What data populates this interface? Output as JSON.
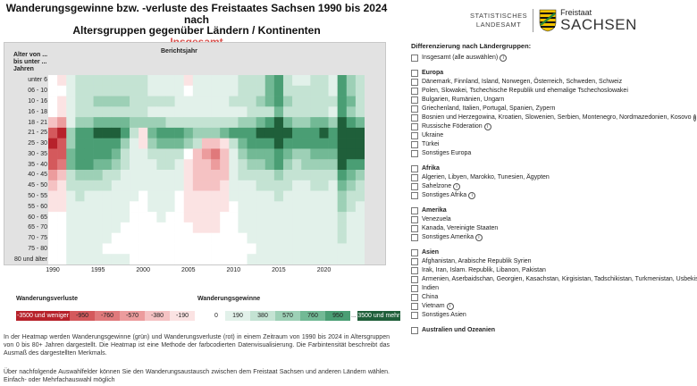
{
  "title": {
    "line1": "Wanderungsgewinne bzw. -verluste des Freistaates Sachsen 1990 bis 2024 nach",
    "line2": "Altersgruppen gegenüber Ländern / Kontinenten",
    "subtitle": "Insgesamt"
  },
  "logo": {
    "statistisches": "STATISTISCHES",
    "landesamt": "LANDESAMT",
    "freistaat": "Freistaat",
    "sachsen": "SACHSEN"
  },
  "chart_data": {
    "type": "heatmap",
    "y_axis_title": "Alter von ... bis unter ... Jahren",
    "x_axis_title": "Berichtsjahr",
    "age_groups": [
      "unter 6",
      "06 - 10",
      "10 - 16",
      "16 - 18",
      "18 - 21",
      "21 - 25",
      "25 - 30",
      "30 - 35",
      "35 - 40",
      "40 - 45",
      "45 - 50",
      "50 - 55",
      "55 - 60",
      "60 - 65",
      "65 - 70",
      "70 - 75",
      "75 - 80",
      "80 und älter"
    ],
    "years": [
      1990,
      1991,
      1992,
      1993,
      1994,
      1995,
      1996,
      1997,
      1998,
      1999,
      2000,
      2001,
      2002,
      2003,
      2004,
      2005,
      2006,
      2007,
      2008,
      2009,
      2010,
      2011,
      2012,
      2013,
      2014,
      2015,
      2016,
      2017,
      2018,
      2019,
      2020,
      2021,
      2022,
      2023,
      2024
    ],
    "x_tick_labels": [
      "1990",
      "1995",
      "2000",
      "2005",
      "2010",
      "2015",
      "2020"
    ],
    "legend_loss_title": "Wanderungsverluste",
    "legend_gain_title": "Wanderungsgewinne",
    "legend_bins": [
      "-3500 und weniger",
      "-950",
      "-760",
      "-570",
      "-380",
      "-190",
      "0",
      "190",
      "380",
      "570",
      "760",
      "950",
      "3500 und mehr"
    ],
    "legend_ellipsis": "...",
    "legend_colors": [
      "#b7222b",
      "#d4595c",
      "#e0797b",
      "#ec9c9d",
      "#f5c2c3",
      "#fbe3e3",
      "#ffffff",
      "#e2f1ea",
      "#c4e3d3",
      "#9dd0b6",
      "#72b995",
      "#4a9e74",
      "#1f5f3a"
    ],
    "values": [
      [
        0,
        -200,
        200,
        300,
        400,
        400,
        450,
        350,
        350,
        300,
        300,
        250,
        250,
        200,
        100,
        -50,
        100,
        200,
        150,
        200,
        200,
        300,
        400,
        500,
        800,
        1100,
        500,
        200,
        250,
        300,
        350,
        200,
        1200,
        700,
        400
      ],
      [
        0,
        0,
        200,
        300,
        300,
        400,
        500,
        450,
        400,
        350,
        300,
        250,
        200,
        150,
        100,
        0,
        100,
        150,
        150,
        200,
        250,
        300,
        400,
        500,
        800,
        1000,
        500,
        300,
        300,
        300,
        350,
        250,
        1200,
        700,
        450
      ],
      [
        0,
        -100,
        250,
        400,
        500,
        600,
        700,
        650,
        600,
        550,
        500,
        450,
        400,
        300,
        200,
        100,
        150,
        200,
        200,
        250,
        300,
        400,
        500,
        600,
        900,
        1100,
        700,
        400,
        400,
        400,
        450,
        300,
        1300,
        900,
        550
      ],
      [
        0,
        -200,
        200,
        400,
        450,
        450,
        500,
        400,
        350,
        300,
        300,
        250,
        200,
        150,
        100,
        50,
        100,
        150,
        100,
        150,
        200,
        250,
        300,
        350,
        550,
        900,
        500,
        300,
        300,
        300,
        350,
        250,
        950,
        650,
        450
      ],
      [
        -300,
        -700,
        200,
        600,
        700,
        800,
        900,
        900,
        800,
        750,
        700,
        650,
        600,
        550,
        500,
        400,
        350,
        400,
        350,
        450,
        550,
        650,
        750,
        850,
        950,
        1600,
        900,
        750,
        750,
        800,
        850,
        750,
        1700,
        1100,
        900
      ],
      [
        -1000,
        -1500,
        600,
        1200,
        1400,
        1500,
        1700,
        1700,
        1000,
        400,
        -250,
        900,
        1200,
        1200,
        1200,
        900,
        700,
        700,
        700,
        800,
        1000,
        1200,
        1400,
        1500,
        1600,
        2000,
        1500,
        1300,
        1300,
        1400,
        1500,
        1400,
        2600,
        2300,
        2100
      ],
      [
        -1500,
        -1200,
        700,
        1100,
        1200,
        1200,
        1300,
        1200,
        600,
        200,
        -200,
        600,
        900,
        900,
        800,
        600,
        300,
        -300,
        -450,
        -150,
        500,
        900,
        1100,
        1200,
        1300,
        1800,
        1200,
        1000,
        1000,
        1100,
        1200,
        1100,
        2400,
        2100,
        1900
      ],
      [
        -1300,
        -950,
        900,
        1100,
        1200,
        1100,
        1000,
        900,
        400,
        200,
        100,
        300,
        500,
        400,
        300,
        0,
        -400,
        -700,
        -800,
        -500,
        200,
        600,
        800,
        900,
        900,
        1400,
        900,
        700,
        700,
        800,
        850,
        800,
        2000,
        1700,
        1500
      ],
      [
        -1200,
        -800,
        800,
        1000,
        1000,
        900,
        800,
        700,
        300,
        150,
        100,
        200,
        350,
        300,
        200,
        -200,
        -400,
        -500,
        -700,
        -450,
        100,
        450,
        600,
        700,
        800,
        1100,
        700,
        550,
        600,
        650,
        700,
        650,
        1600,
        1400,
        1200
      ],
      [
        -700,
        -500,
        500,
        700,
        700,
        600,
        500,
        400,
        200,
        100,
        100,
        150,
        250,
        200,
        150,
        -200,
        -300,
        -400,
        -500,
        -300,
        100,
        300,
        400,
        500,
        500,
        700,
        500,
        350,
        350,
        400,
        450,
        400,
        1100,
        900,
        750
      ],
      [
        -300,
        -250,
        300,
        500,
        450,
        400,
        300,
        250,
        150,
        100,
        50,
        100,
        150,
        100,
        100,
        -200,
        -300,
        -300,
        -350,
        -200,
        50,
        200,
        250,
        300,
        350,
        500,
        350,
        250,
        250,
        300,
        300,
        250,
        900,
        600,
        500
      ],
      [
        -150,
        -100,
        200,
        300,
        250,
        250,
        200,
        150,
        100,
        50,
        0,
        50,
        100,
        50,
        0,
        -150,
        -200,
        -200,
        -200,
        -100,
        50,
        100,
        150,
        200,
        250,
        350,
        250,
        150,
        200,
        200,
        250,
        200,
        750,
        400,
        350
      ],
      [
        -50,
        -50,
        100,
        200,
        200,
        150,
        150,
        100,
        50,
        0,
        0,
        50,
        50,
        50,
        0,
        -100,
        -100,
        -150,
        -150,
        -50,
        0,
        100,
        100,
        150,
        200,
        250,
        200,
        150,
        150,
        150,
        200,
        150,
        600,
        300,
        250
      ],
      [
        0,
        0,
        100,
        150,
        150,
        100,
        100,
        50,
        50,
        0,
        0,
        0,
        50,
        0,
        0,
        -50,
        -100,
        -100,
        -100,
        0,
        0,
        50,
        100,
        100,
        150,
        200,
        150,
        100,
        100,
        100,
        150,
        100,
        500,
        250,
        200
      ],
      [
        0,
        0,
        50,
        100,
        100,
        50,
        50,
        50,
        0,
        0,
        0,
        0,
        0,
        0,
        0,
        0,
        -50,
        -50,
        -50,
        0,
        0,
        50,
        50,
        50,
        100,
        150,
        100,
        50,
        50,
        100,
        100,
        100,
        400,
        200,
        150
      ],
      [
        0,
        0,
        50,
        50,
        50,
        50,
        50,
        0,
        0,
        0,
        0,
        0,
        0,
        0,
        0,
        0,
        0,
        0,
        0,
        0,
        0,
        0,
        50,
        50,
        50,
        100,
        50,
        50,
        50,
        50,
        50,
        50,
        300,
        150,
        100
      ],
      [
        0,
        0,
        50,
        50,
        50,
        50,
        0,
        0,
        0,
        0,
        0,
        0,
        0,
        0,
        0,
        0,
        0,
        0,
        0,
        0,
        0,
        0,
        0,
        50,
        50,
        50,
        50,
        50,
        50,
        50,
        50,
        50,
        250,
        100,
        100
      ],
      [
        0,
        0,
        50,
        50,
        50,
        50,
        50,
        50,
        50,
        0,
        0,
        0,
        0,
        0,
        0,
        0,
        0,
        0,
        0,
        0,
        0,
        0,
        50,
        50,
        50,
        50,
        50,
        50,
        50,
        50,
        50,
        50,
        200,
        100,
        100
      ]
    ]
  },
  "description": "In der Heatmap werden Wanderungsgewinne (grün) und Wanderungsverluste (rot) in einem Zeitraum von 1990 bis 2024 in Altersgruppen von 0 bis 80+ Jahren dargestellt. Die Heatmap ist eine Methode der farbcodierten Datenvisualisierung. Die Farbintensität beschreibt das Ausmaß des dargestellten Merkmals.",
  "instruction": "Über nachfolgende Auswahlfelder können Sie den Wanderungsaustausch zwischen dem Freistaat Sachsen und anderen Ländern wählen. Einfach- oder Mehrfachauswahl möglich",
  "filters": {
    "title": "Differenzierung nach Ländergruppen:",
    "all": "Insgesamt (alle auswählen)",
    "groups": [
      {
        "name": "Europa",
        "items": [
          "Dänemark, Finnland, Island, Norwegen, Österreich, Schweden, Schweiz",
          "Polen, Slowakei, Tschechische Republik und ehemalige Tschechoslowakei",
          "Bulgarien, Rumänien, Ungarn",
          "Griechenland, Italien, Portugal, Spanien, Zypern",
          "Bosnien und Herzegowina, Kroatien, Slowenien, Serbien, Montenegro, Nordmazedonien, Kosovo",
          "Russische Föderation",
          "Ukraine",
          "Türkei",
          "Sonstiges Europa"
        ]
      },
      {
        "name": "Afrika",
        "items": [
          "Algerien, Libyen, Marokko, Tunesien, Ägypten",
          "Sahelzone",
          "Sonstiges Afrika"
        ]
      },
      {
        "name": "Amerika",
        "items": [
          "Venezuela",
          "Kanada, Vereinigte Staaten",
          "Sonstiges Amerika"
        ]
      },
      {
        "name": "Asien",
        "items": [
          "Afghanistan, Arabische Republik Syrien",
          "Irak, Iran, Islam. Republik, Libanon, Pakistan",
          "Armenien, Aserbaidschan, Georgien, Kasachstan, Kirgisistan, Tadschikistan, Turkmenistan, Usbekistan",
          "Indien",
          "China",
          "Vietnam",
          "Sonstiges Asien"
        ]
      },
      {
        "name": "Australien und Ozeanien",
        "items": []
      }
    ],
    "info_items": [
      "Insgesamt (alle auswählen)",
      "Bosnien und Herzegowina, Kroatien, Slowenien, Serbien, Montenegro, Nordmazedonien, Kosovo",
      "Russische Föderation",
      "Sahelzone",
      "Sonstiges Afrika",
      "Sonstiges Amerika",
      "Vietnam"
    ],
    "info_glyph": "i"
  }
}
